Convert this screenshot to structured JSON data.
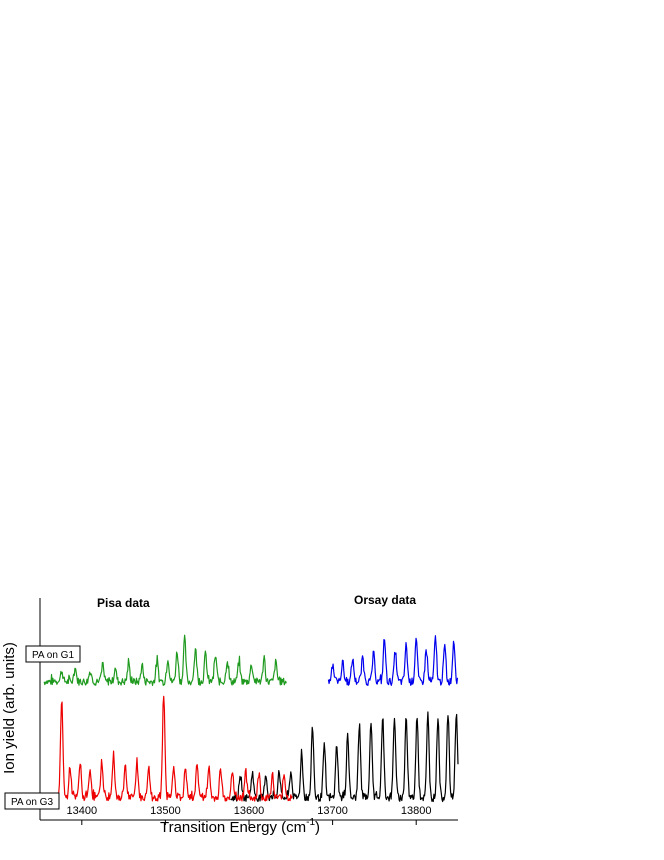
{
  "chart_data": {
    "type": "line",
    "title": "",
    "xlabel": "Transition Energy (cm",
    "xlabel_sup": "-1",
    "xlabel_close": ")",
    "ylabel": "Ion yield (arb. units)",
    "xlim": [
      13350,
      13850
    ],
    "x_ticks": [
      13400,
      13500,
      13600,
      13700,
      13800
    ],
    "annotations": {
      "left": "Pisa data",
      "right": "Orsay data",
      "trace_upper": "PA on G1",
      "trace_lower": "PA on G3"
    },
    "series": [
      {
        "color": "#1f9a1f",
        "x_range": [
          13355,
          13645
        ],
        "baseline": 0.62,
        "peaks": [
          {
            "x": 13376,
            "h": 0.05
          },
          {
            "x": 13392,
            "h": 0.06
          },
          {
            "x": 13410,
            "h": 0.05
          },
          {
            "x": 13425,
            "h": 0.07
          },
          {
            "x": 13440,
            "h": 0.06
          },
          {
            "x": 13456,
            "h": 0.08
          },
          {
            "x": 13472,
            "h": 0.07
          },
          {
            "x": 13490,
            "h": 0.09
          },
          {
            "x": 13503,
            "h": 0.11
          },
          {
            "x": 13514,
            "h": 0.14
          },
          {
            "x": 13523,
            "h": 0.2
          },
          {
            "x": 13536,
            "h": 0.15
          },
          {
            "x": 13548,
            "h": 0.13
          },
          {
            "x": 13560,
            "h": 0.12
          },
          {
            "x": 13574,
            "h": 0.1
          },
          {
            "x": 13588,
            "h": 0.09
          },
          {
            "x": 13603,
            "h": 0.08
          },
          {
            "x": 13618,
            "h": 0.1
          },
          {
            "x": 13632,
            "h": 0.09
          }
        ]
      },
      {
        "color": "#0000ee",
        "x_range": [
          13695,
          13850
        ],
        "baseline": 0.62,
        "peaks": [
          {
            "x": 13700,
            "h": 0.08
          },
          {
            "x": 13712,
            "h": 0.09
          },
          {
            "x": 13724,
            "h": 0.1
          },
          {
            "x": 13736,
            "h": 0.11
          },
          {
            "x": 13749,
            "h": 0.13
          },
          {
            "x": 13762,
            "h": 0.2
          },
          {
            "x": 13775,
            "h": 0.14
          },
          {
            "x": 13788,
            "h": 0.17
          },
          {
            "x": 13800,
            "h": 0.2
          },
          {
            "x": 13812,
            "h": 0.15
          },
          {
            "x": 13823,
            "h": 0.2
          },
          {
            "x": 13834,
            "h": 0.16
          },
          {
            "x": 13845,
            "h": 0.19
          }
        ]
      },
      {
        "color": "#000000",
        "x_range": [
          13578,
          13850
        ],
        "baseline": 0.08,
        "peaks": [
          {
            "x": 13590,
            "h": 0.1
          },
          {
            "x": 13604,
            "h": 0.12
          },
          {
            "x": 13620,
            "h": 0.11
          },
          {
            "x": 13636,
            "h": 0.13
          },
          {
            "x": 13650,
            "h": 0.12
          },
          {
            "x": 13663,
            "h": 0.2
          },
          {
            "x": 13676,
            "h": 0.33
          },
          {
            "x": 13690,
            "h": 0.24
          },
          {
            "x": 13705,
            "h": 0.25
          },
          {
            "x": 13718,
            "h": 0.3
          },
          {
            "x": 13732,
            "h": 0.34
          },
          {
            "x": 13746,
            "h": 0.36
          },
          {
            "x": 13760,
            "h": 0.37
          },
          {
            "x": 13774,
            "h": 0.38
          },
          {
            "x": 13788,
            "h": 0.38
          },
          {
            "x": 13801,
            "h": 0.39
          },
          {
            "x": 13814,
            "h": 0.39
          },
          {
            "x": 13826,
            "h": 0.38
          },
          {
            "x": 13838,
            "h": 0.39
          },
          {
            "x": 13848,
            "h": 0.4
          }
        ]
      },
      {
        "color": "#ee0000",
        "x_range": [
          13370,
          13652
        ],
        "baseline": 0.08,
        "peaks": [
          {
            "x": 13376,
            "h": 0.46
          },
          {
            "x": 13386,
            "h": 0.14
          },
          {
            "x": 13398,
            "h": 0.16
          },
          {
            "x": 13410,
            "h": 0.13
          },
          {
            "x": 13424,
            "h": 0.17
          },
          {
            "x": 13438,
            "h": 0.2
          },
          {
            "x": 13452,
            "h": 0.15
          },
          {
            "x": 13466,
            "h": 0.16
          },
          {
            "x": 13480,
            "h": 0.14
          },
          {
            "x": 13498,
            "h": 0.47
          },
          {
            "x": 13510,
            "h": 0.15
          },
          {
            "x": 13524,
            "h": 0.14
          },
          {
            "x": 13538,
            "h": 0.16
          },
          {
            "x": 13552,
            "h": 0.14
          },
          {
            "x": 13566,
            "h": 0.13
          },
          {
            "x": 13580,
            "h": 0.12
          },
          {
            "x": 13596,
            "h": 0.13
          },
          {
            "x": 13612,
            "h": 0.11
          },
          {
            "x": 13628,
            "h": 0.1
          },
          {
            "x": 13642,
            "h": 0.11
          }
        ]
      }
    ]
  }
}
